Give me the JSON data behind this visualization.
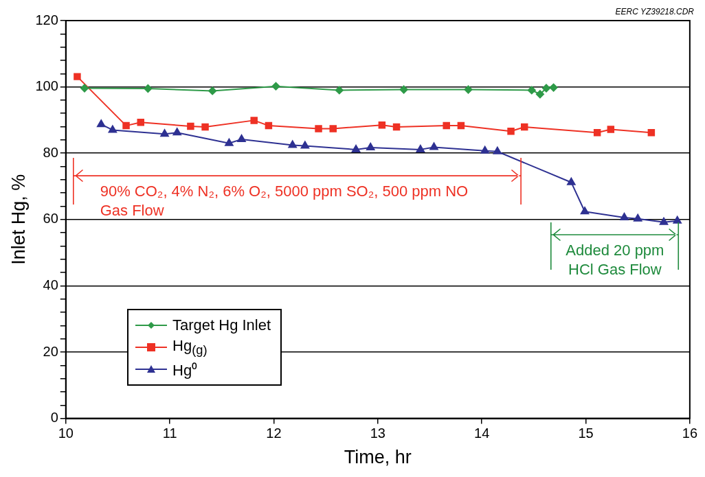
{
  "chart_data": {
    "type": "line",
    "xlabel": "Time, hr",
    "ylabel": "Inlet Hg, %",
    "xlim": [
      10,
      16
    ],
    "xticks": [
      10,
      11,
      12,
      13,
      14,
      15,
      16
    ],
    "ylim": [
      0,
      120
    ],
    "yticks": [
      0,
      {
        "value": 4,
        "label": null
      },
      {
        "value": 8,
        "label": null
      },
      {
        "value": 12,
        "label": null
      },
      {
        "value": 16,
        "label": null
      },
      20,
      {
        "value": 24,
        "label": null
      },
      {
        "value": 28,
        "label": null
      },
      {
        "value": 32,
        "label": null
      },
      {
        "value": 36,
        "label": null
      },
      40,
      {
        "value": 44,
        "label": null
      },
      {
        "value": 48,
        "label": null
      },
      {
        "value": 52,
        "label": null
      },
      {
        "value": 56,
        "label": null
      },
      60,
      {
        "value": 64,
        "label": null
      },
      {
        "value": 68,
        "label": null
      },
      {
        "value": 72,
        "label": null
      },
      {
        "value": 76,
        "label": null
      },
      80,
      {
        "value": 84,
        "label": null
      },
      {
        "value": 88,
        "label": null
      },
      {
        "value": 92,
        "label": null
      },
      {
        "value": 96,
        "label": null
      },
      100,
      {
        "value": 104,
        "label": null
      },
      {
        "value": 108,
        "label": null
      },
      {
        "value": 112,
        "label": null
      },
      {
        "value": 116,
        "label": null
      },
      120
    ],
    "grid": "y",
    "legend": "bottom left",
    "series": [
      {
        "name": "Target Hg Inlet",
        "color": "#2e9a48",
        "marker": "diamond",
        "x": [
          10.18,
          10.79,
          11.41,
          12.02,
          12.63,
          13.25,
          13.87,
          14.48,
          14.56,
          14.62,
          14.69
        ],
        "values": [
          99.6,
          99.5,
          98.8,
          100.2,
          99.0,
          99.2,
          99.2,
          99.0,
          97.8,
          99.6,
          99.8
        ]
      },
      {
        "name": "Hg$_{(g)}$",
        "color": "#ee3124",
        "marker": "square",
        "x": [
          10.11,
          10.58,
          10.72,
          11.2,
          11.34,
          11.81,
          11.95,
          12.43,
          12.57,
          13.04,
          13.18,
          13.66,
          13.8,
          14.28,
          14.41,
          15.11,
          15.24,
          15.63
        ],
        "values": [
          103.1,
          88.3,
          89.3,
          88.1,
          87.9,
          89.9,
          88.3,
          87.4,
          87.4,
          88.5,
          87.9,
          88.3,
          88.3,
          86.6,
          87.9,
          86.2,
          87.2,
          86.2
        ]
      },
      {
        "name": "Hg⁰",
        "color": "#2e3192",
        "marker": "triangle",
        "x": [
          10.34,
          10.45,
          10.95,
          11.07,
          11.57,
          11.69,
          12.18,
          12.3,
          12.79,
          12.93,
          13.41,
          13.54,
          14.03,
          14.15,
          14.86,
          14.99,
          15.37,
          15.5,
          15.75,
          15.88
        ],
        "values": [
          88.7,
          87.0,
          85.8,
          86.2,
          83.0,
          84.2,
          82.4,
          82.2,
          81.1,
          81.7,
          81.1,
          81.8,
          80.7,
          80.5,
          71.2,
          62.4,
          60.6,
          60.2,
          59.2,
          59.6
        ]
      }
    ],
    "annotations": [
      "EERC YZ39218.CDR",
      "90% CO₂, 4% N₂, 6% O₂, 5000 ppm SO₂, 500 ppm NO Gas Flow",
      "Added 20 ppm HCl Gas Flow"
    ]
  }
}
